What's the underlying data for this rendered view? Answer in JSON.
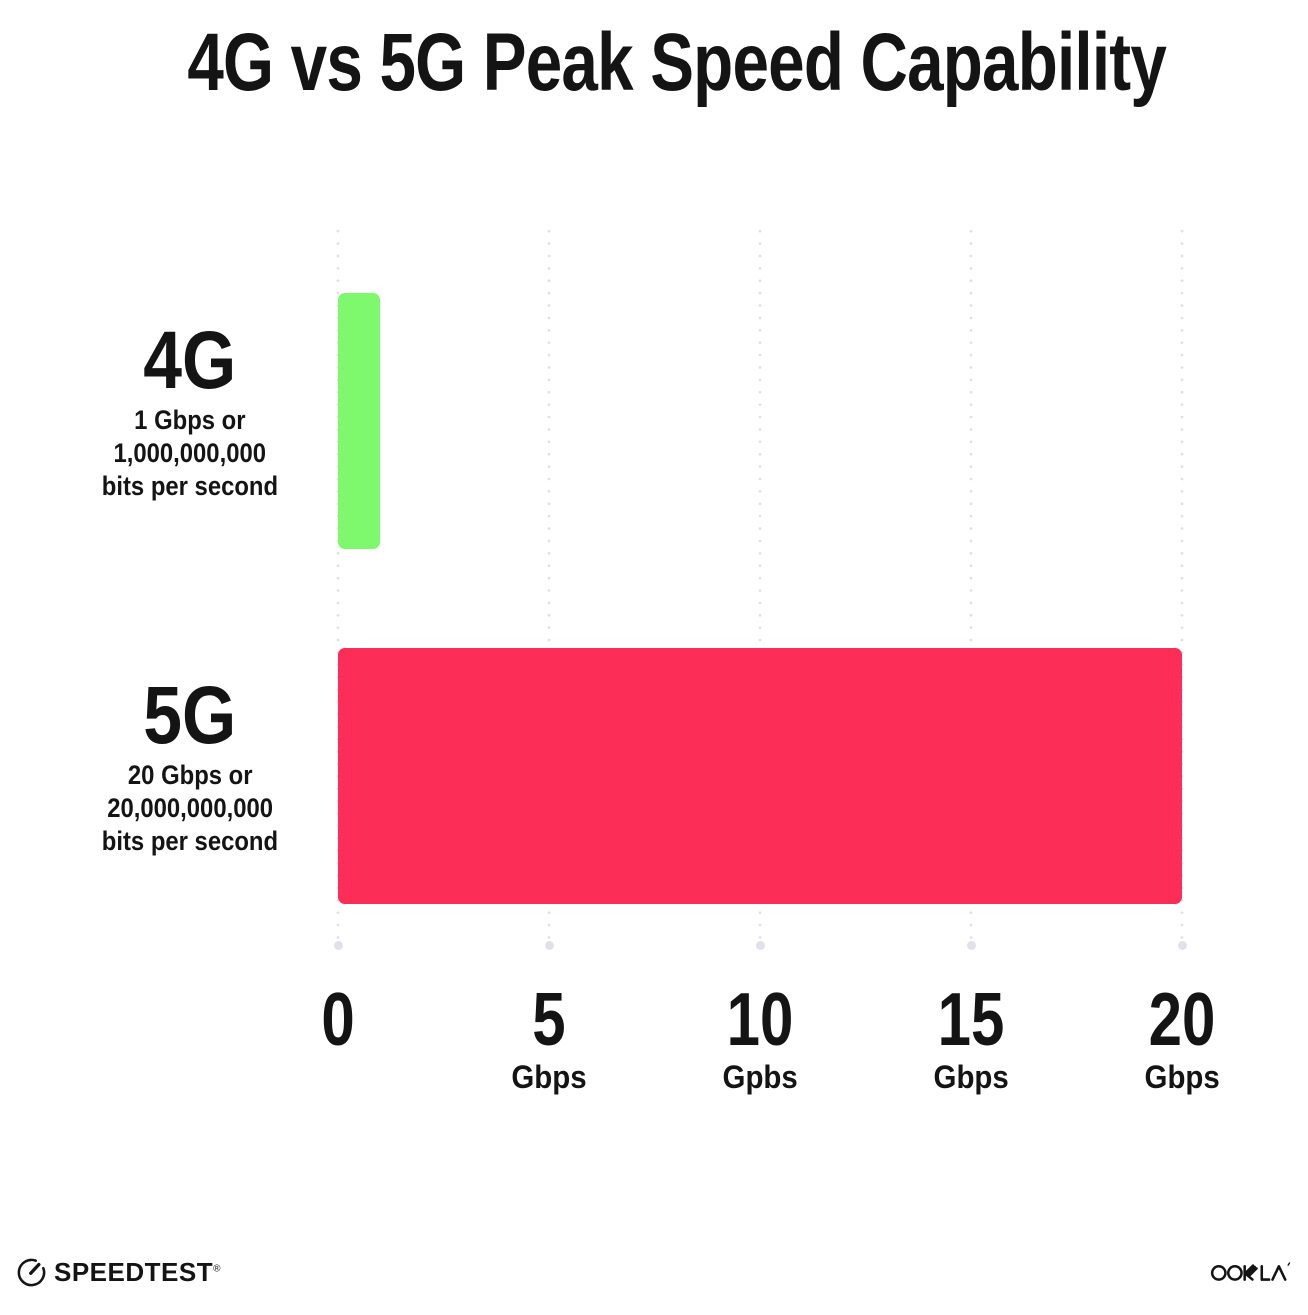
{
  "chart_data": {
    "type": "bar",
    "orientation": "horizontal",
    "title": "4G vs 5G Peak Speed Capability",
    "categories": [
      "4G",
      "5G"
    ],
    "values": [
      1,
      20
    ],
    "value_unit": "Gbps",
    "bar_colors": [
      "#7EF96D",
      "#FC2D56"
    ],
    "category_descriptions": [
      [
        "1 Gbps or",
        "1,000,000,000",
        "bits per second"
      ],
      [
        "20 Gbps or",
        "20,000,000,000",
        "bits per second"
      ]
    ],
    "xlim": [
      0,
      20
    ],
    "x_ticks": [
      {
        "value": "0",
        "unit": ""
      },
      {
        "value": "5",
        "unit": "Gbps"
      },
      {
        "value": "10",
        "unit": "Gpbs"
      },
      {
        "value": "15",
        "unit": "Gbps"
      },
      {
        "value": "20",
        "unit": "Gbps"
      }
    ],
    "grid": "vertical-dotted",
    "legend_position": "none"
  },
  "footer": {
    "speedtest_label": "SPEEDTEST",
    "speedtest_trademark": "®",
    "ookla_label": "OOKLA"
  },
  "colors": {
    "background": "#FFFFFF",
    "text": "#141414",
    "bar_4g": "#7EF96D",
    "bar_5g": "#FC2D56",
    "gridline": "#E2E0EB"
  }
}
